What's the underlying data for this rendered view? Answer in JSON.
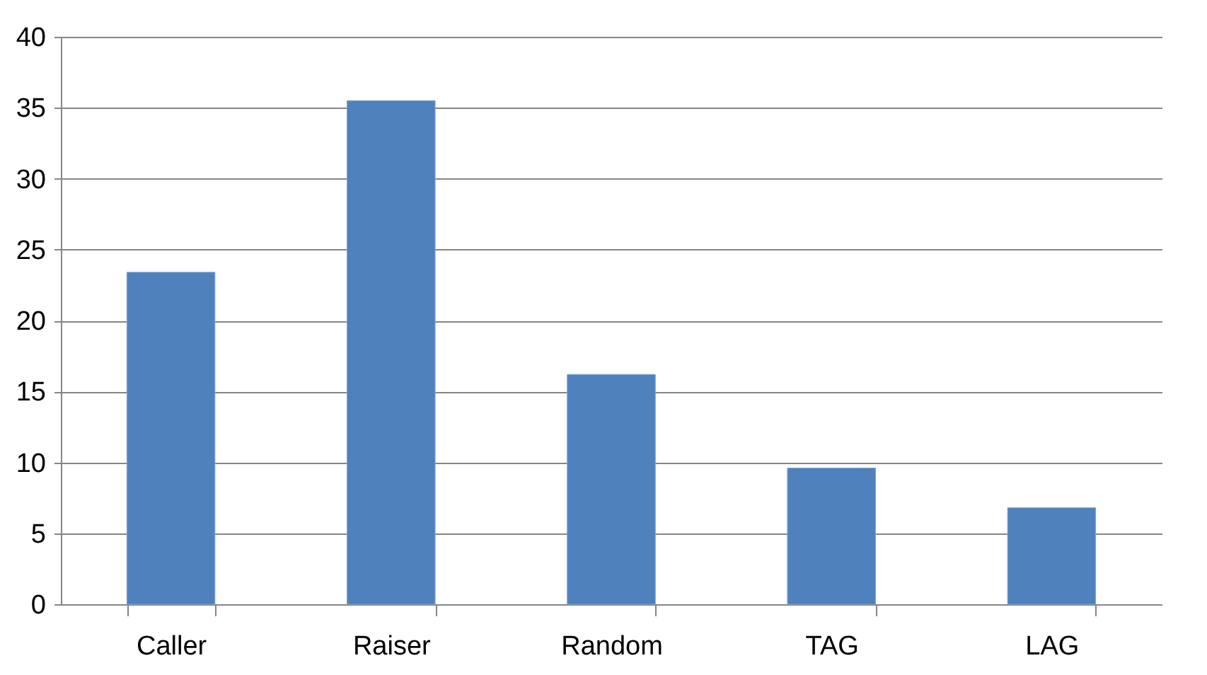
{
  "chart_data": {
    "type": "bar",
    "categories": [
      "Caller",
      "Raiser",
      "Random",
      "TAG",
      "LAG"
    ],
    "values": [
      23.4,
      35.5,
      16.2,
      9.6,
      6.8
    ],
    "color": "#4f81bd",
    "ylim": [
      0,
      40
    ],
    "yticks": [
      0,
      5,
      10,
      15,
      20,
      25,
      30,
      35,
      40
    ],
    "grid": "y"
  }
}
